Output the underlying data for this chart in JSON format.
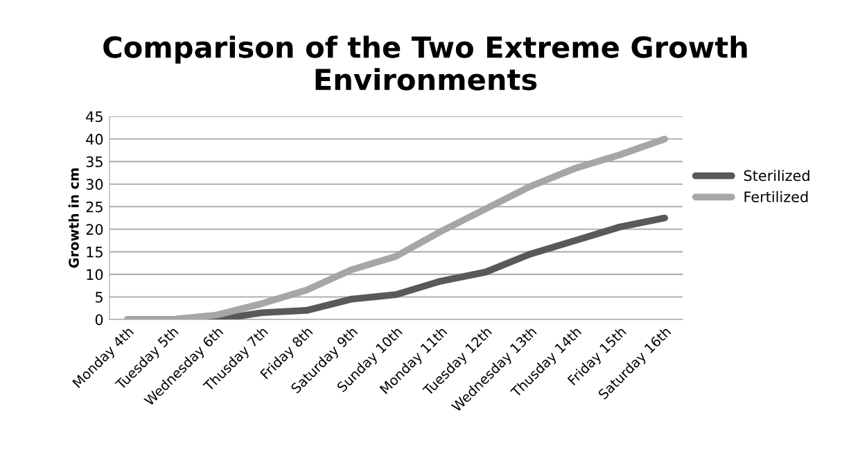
{
  "chart_data": {
    "type": "line",
    "title": "Comparison of the Two Extreme Growth Environments",
    "ylabel": "Growth in cm",
    "categories": [
      "Monday 4th",
      "Tuesday 5th",
      "Wednesday 6th",
      "Thusday 7th",
      "Friday 8th",
      "Saturday 9th",
      "Sunday 10th",
      "Monday 11th",
      "Tuesday 12th",
      "Wednesday 13th",
      "Thusday 14th",
      "Friday 15th",
      "Saturday 16th"
    ],
    "series": [
      {
        "name": "Sterilized",
        "color": "#595959",
        "values": [
          0,
          0,
          0,
          1.5,
          2,
          4.5,
          5.5,
          8.5,
          10.5,
          14.5,
          17.5,
          20.5,
          22.5
        ]
      },
      {
        "name": "Fertilized",
        "color": "#a6a6a6",
        "values": [
          0,
          0,
          1,
          3.5,
          6.5,
          11,
          14,
          19.5,
          24.5,
          29.5,
          33.5,
          36.5,
          40
        ]
      }
    ],
    "ylim": [
      0,
      45
    ],
    "yticks": [
      0,
      5,
      10,
      15,
      20,
      25,
      30,
      35,
      40,
      45
    ],
    "grid": "y",
    "legend": "right",
    "marker": "none",
    "line_style": "solid"
  }
}
